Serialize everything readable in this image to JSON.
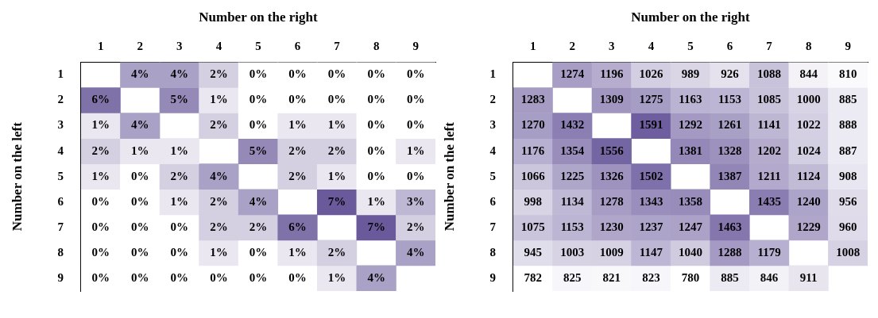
{
  "chart_data": [
    {
      "type": "heatmap",
      "xlabel": "Number on the right",
      "ylabel": "Number on the left",
      "color": "#6a5a9b",
      "categories": [
        "1",
        "2",
        "3",
        "4",
        "5",
        "6",
        "7",
        "8",
        "9"
      ],
      "y_categories": [
        "1",
        "2",
        "3",
        "4",
        "5",
        "6",
        "7",
        "8",
        "9"
      ],
      "cells": [
        [
          null,
          4,
          4,
          2,
          0,
          0,
          0,
          0,
          0
        ],
        [
          6,
          null,
          5,
          1,
          0,
          0,
          0,
          0,
          0
        ],
        [
          1,
          4,
          null,
          2,
          0,
          1,
          1,
          0,
          0
        ],
        [
          2,
          1,
          1,
          null,
          5,
          2,
          2,
          0,
          1
        ],
        [
          1,
          0,
          2,
          4,
          null,
          2,
          1,
          0,
          0
        ],
        [
          0,
          0,
          1,
          2,
          4,
          null,
          7,
          1,
          3
        ],
        [
          0,
          0,
          0,
          2,
          2,
          6,
          null,
          7,
          2
        ],
        [
          0,
          0,
          0,
          1,
          0,
          1,
          2,
          null,
          4
        ],
        [
          0,
          0,
          0,
          0,
          0,
          0,
          1,
          4,
          null
        ]
      ],
      "cell_labels": [
        [
          null,
          "4%",
          "4%",
          "2%",
          "0%",
          "0%",
          "0%",
          "0%",
          "0%"
        ],
        [
          "6%",
          null,
          "5%",
          "1%",
          "0%",
          "0%",
          "0%",
          "0%",
          "0%"
        ],
        [
          "1%",
          "4%",
          null,
          "2%",
          "0%",
          "1%",
          "1%",
          "0%",
          "0%"
        ],
        [
          "2%",
          "1%",
          "1%",
          null,
          "5%",
          "2%",
          "2%",
          "0%",
          "1%"
        ],
        [
          "1%",
          "0%",
          "2%",
          "4%",
          null,
          "2%",
          "1%",
          "0%",
          "0%"
        ],
        [
          "0%",
          "0%",
          "1%",
          "2%",
          "4%",
          null,
          "7%",
          "1%",
          "3%"
        ],
        [
          "0%",
          "0%",
          "0%",
          "2%",
          "2%",
          "6%",
          null,
          "7%",
          "2%"
        ],
        [
          "0%",
          "0%",
          "0%",
          "1%",
          "0%",
          "1%",
          "2%",
          null,
          "4%"
        ],
        [
          "0%",
          "0%",
          "0%",
          "0%",
          "0%",
          "0%",
          "1%",
          "4%",
          null
        ]
      ]
    },
    {
      "type": "heatmap",
      "xlabel": "Number on the right",
      "ylabel": "Number on the left",
      "color": "#6e5e9f",
      "data_labels": true,
      "categories": [
        "1",
        "2",
        "3",
        "4",
        "5",
        "6",
        "7",
        "8",
        "9"
      ],
      "y_categories": [
        "1",
        "2",
        "3",
        "4",
        "5",
        "6",
        "7",
        "8",
        "9"
      ],
      "cells": [
        [
          null,
          1274,
          1196,
          1026,
          989,
          926,
          1088,
          844,
          810
        ],
        [
          1283,
          null,
          1309,
          1275,
          1163,
          1153,
          1085,
          1000,
          885
        ],
        [
          1270,
          1432,
          null,
          1591,
          1292,
          1261,
          1141,
          1022,
          888
        ],
        [
          1176,
          1354,
          1556,
          null,
          1381,
          1328,
          1202,
          1024,
          887
        ],
        [
          1066,
          1225,
          1326,
          1502,
          null,
          1387,
          1211,
          1124,
          908
        ],
        [
          998,
          1134,
          1278,
          1343,
          1358,
          null,
          1435,
          1240,
          956
        ],
        [
          1075,
          1153,
          1230,
          1237,
          1247,
          1463,
          null,
          1229,
          960
        ],
        [
          945,
          1003,
          1009,
          1147,
          1040,
          1288,
          1179,
          null,
          1008
        ],
        [
          782,
          825,
          821,
          823,
          780,
          885,
          846,
          911,
          null
        ]
      ]
    }
  ]
}
